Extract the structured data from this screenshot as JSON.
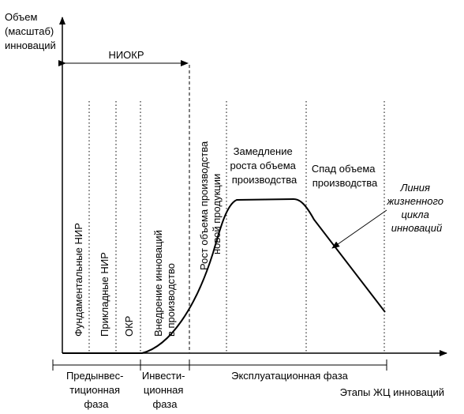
{
  "y_axis_label": [
    "Объем",
    "(масштаб)",
    "инноваций"
  ],
  "x_axis_label": "Этапы ЖЦ инноваций",
  "niokr_label": "НИОКР",
  "stages": [
    {
      "label": "Фундаментальные НИР"
    },
    {
      "label": "Прикладные НИР"
    },
    {
      "label": "ОКР"
    },
    {
      "label": [
        "Внедрение инноваций",
        "в производство"
      ]
    },
    {
      "label": [
        "Рост объема производства",
        "новой продукции"
      ]
    },
    {
      "label": [
        "Замедление",
        "роста объема",
        "производства"
      ]
    },
    {
      "label": [
        "Спад объема",
        "производства"
      ]
    }
  ],
  "curve_label": [
    "Линия",
    "жизненного",
    "цикла",
    "инноваций"
  ],
  "phases": [
    {
      "label": [
        "Предынвес-",
        "тиционная",
        "фаза"
      ]
    },
    {
      "label": [
        "Инвести-",
        "ционная",
        "фаза"
      ]
    },
    {
      "label": [
        "Эксплуатационная фаза"
      ]
    }
  ]
}
